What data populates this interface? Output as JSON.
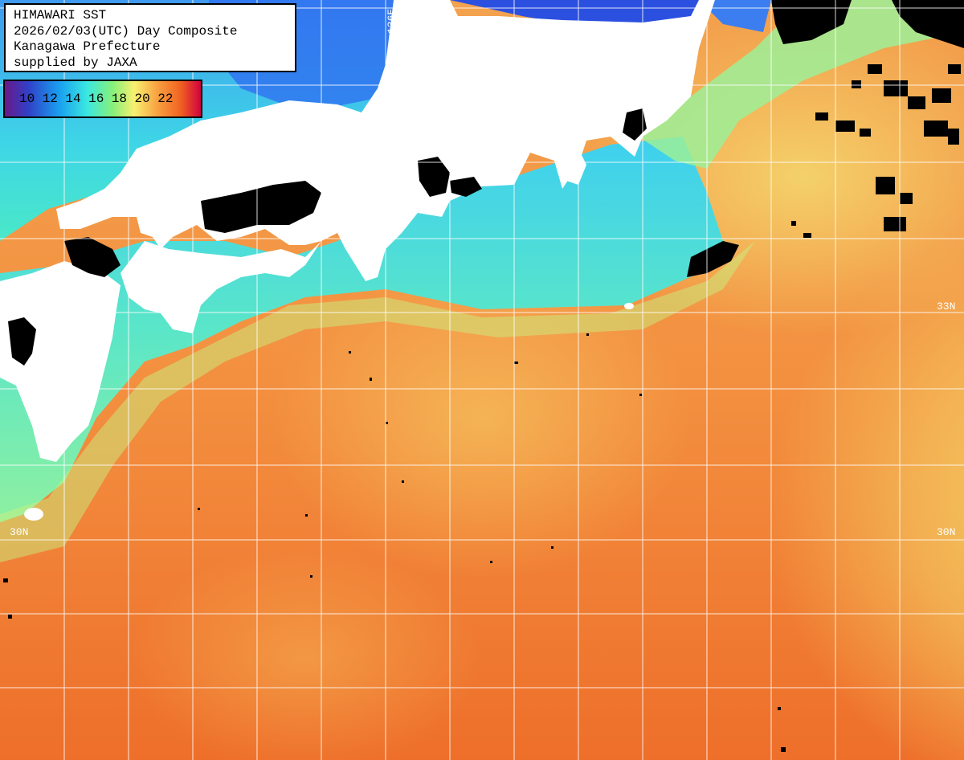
{
  "header": {
    "title": "HIMAWARI SST",
    "date_line": "2026/02/03(UTC) Day Composite",
    "region": "Kanagawa Prefecture",
    "credit": "supplied by JAXA"
  },
  "legend": {
    "ticks": [
      "10",
      "12",
      "14",
      "16",
      "18",
      "20",
      "22"
    ],
    "colors": [
      "#7a1a8a",
      "#2a3ad0",
      "#1aa0f0",
      "#3ae8e0",
      "#7af07a",
      "#f8f070",
      "#f8a040",
      "#f06020",
      "#d00040"
    ]
  },
  "grid_labels": {
    "lon_136e": "136E",
    "lat_33n": "33N",
    "lat_30n": "30N"
  },
  "colors": {
    "land": "#ffffff",
    "cloud_mask": "#000000",
    "grid_line": "#ffffff",
    "warm_sea": "#f08a3c",
    "cool_sea": "#5ae6c8",
    "cold_sea": "#2f86f0"
  }
}
